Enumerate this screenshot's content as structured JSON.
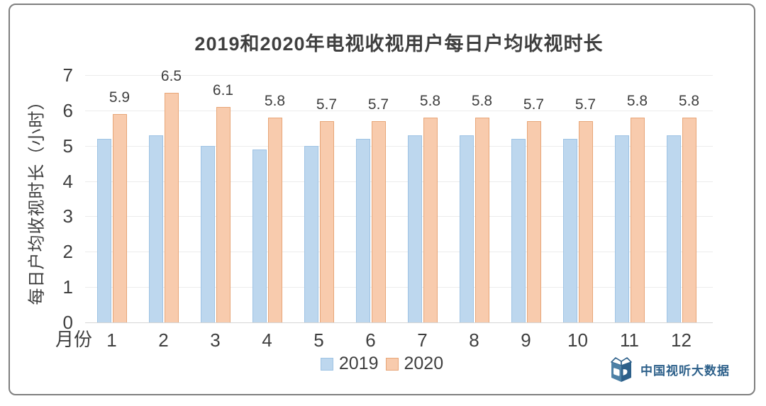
{
  "chart_data": {
    "type": "bar",
    "title": "2019和2020年电视收视用户每日户均收视时长",
    "xlabel": "月份",
    "ylabel": "每日户均收视时长（小时）",
    "categories": [
      "1",
      "2",
      "3",
      "4",
      "5",
      "6",
      "7",
      "8",
      "9",
      "10",
      "11",
      "12"
    ],
    "series": [
      {
        "name": "2019",
        "fill": "#BDD7EE",
        "border": "#9EC3E4",
        "values": [
          5.2,
          5.3,
          5.0,
          4.9,
          5.0,
          5.2,
          5.3,
          5.3,
          5.2,
          5.2,
          5.3,
          5.3
        ],
        "data_labels": null
      },
      {
        "name": "2020",
        "fill": "#F8CBAD",
        "border": "#E8A678",
        "values": [
          5.9,
          6.5,
          6.1,
          5.8,
          5.7,
          5.7,
          5.8,
          5.8,
          5.7,
          5.7,
          5.8,
          5.8
        ],
        "data_labels": [
          "5.9",
          "6.5",
          "6.1",
          "5.8",
          "5.7",
          "5.7",
          "5.8",
          "5.8",
          "5.7",
          "5.7",
          "5.8",
          "5.8"
        ]
      }
    ],
    "ylim": [
      0,
      7
    ],
    "yticks": [
      "0",
      "1",
      "2",
      "3",
      "4",
      "5",
      "6",
      "7"
    ],
    "grid": true,
    "legend_position": "bottom"
  },
  "branding": {
    "logo_icon": "cube-book-icon",
    "logo_text": "中国视听大数据",
    "logo_color": "#2D608A"
  },
  "colors": {
    "text": "#3F3F3F",
    "gridline": "#ECECEC",
    "axis_line": "#D6D6D6",
    "card_border": "#7F7F7F"
  }
}
